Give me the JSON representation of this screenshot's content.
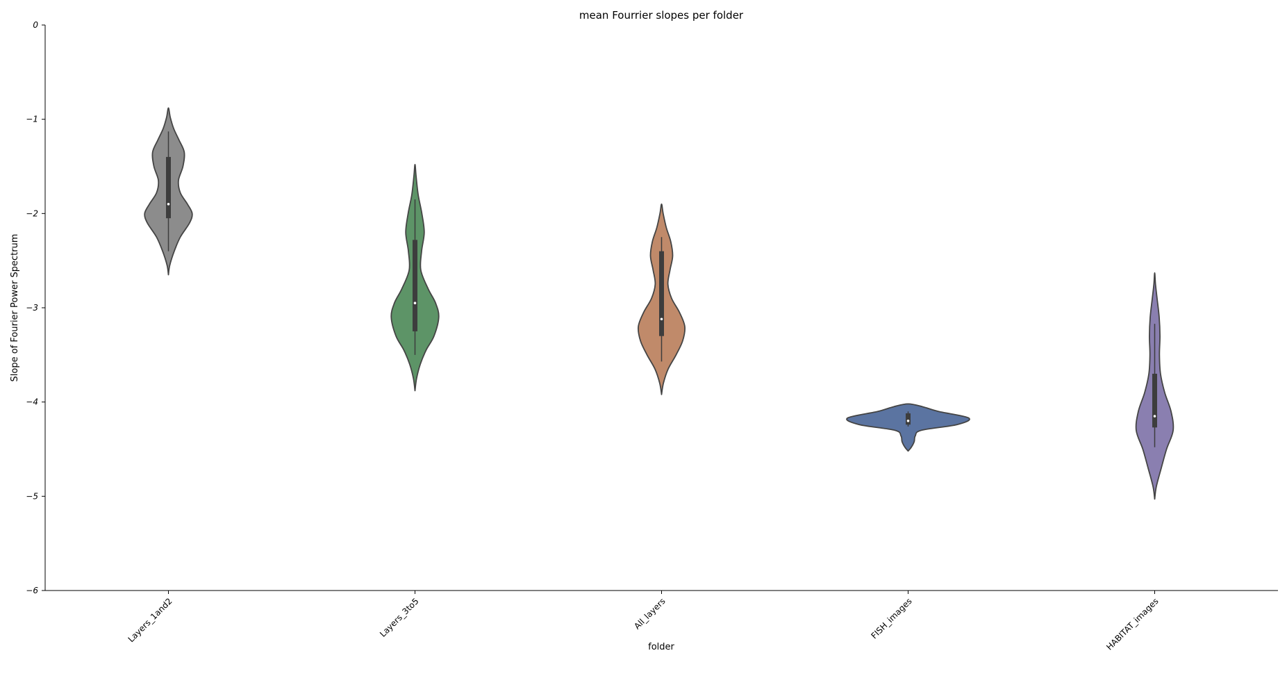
{
  "chart_data": {
    "type": "violin",
    "title": "mean Fourrier slopes per folder",
    "xlabel": "folder",
    "ylabel": "Slope of Fourier Power Spectrum",
    "ylim": [
      -6,
      0
    ],
    "yticks": [
      0,
      -1,
      -2,
      -3,
      -4,
      -5,
      -6
    ],
    "ytick_labels": [
      "0",
      "−1",
      "−2",
      "−3",
      "−4",
      "−5",
      "−6"
    ],
    "categories": [
      "Layers_1and2",
      "Layers_3to5",
      "All_layers",
      "FISH_images",
      "HABITAT_images"
    ],
    "grid": false,
    "legend": "none",
    "violins": [
      {
        "category": "Layers_1and2",
        "color": "#8c8c8c",
        "min": -2.4,
        "q1": -2.05,
        "median": -1.9,
        "q3": -1.4,
        "max": -1.13,
        "ymin": -2.65,
        "ymax": -0.88,
        "profile": [
          [
            -2.65,
            0.0
          ],
          [
            -2.55,
            0.05
          ],
          [
            -2.4,
            0.22
          ],
          [
            -2.25,
            0.45
          ],
          [
            -2.1,
            0.8
          ],
          [
            -2.0,
            0.9
          ],
          [
            -1.9,
            0.72
          ],
          [
            -1.78,
            0.45
          ],
          [
            -1.65,
            0.38
          ],
          [
            -1.5,
            0.55
          ],
          [
            -1.35,
            0.6
          ],
          [
            -1.22,
            0.4
          ],
          [
            -1.1,
            0.2
          ],
          [
            -0.98,
            0.07
          ],
          [
            -0.88,
            0.0
          ]
        ]
      },
      {
        "category": "Layers_3to5",
        "color": "#5d9467",
        "min": -3.5,
        "q1": -3.25,
        "median": -2.95,
        "q3": -2.28,
        "max": -1.85,
        "ymin": -3.88,
        "ymax": -1.48,
        "profile": [
          [
            -3.88,
            0.0
          ],
          [
            -3.75,
            0.06
          ],
          [
            -3.6,
            0.2
          ],
          [
            -3.45,
            0.42
          ],
          [
            -3.3,
            0.72
          ],
          [
            -3.1,
            0.9
          ],
          [
            -2.95,
            0.78
          ],
          [
            -2.8,
            0.5
          ],
          [
            -2.6,
            0.22
          ],
          [
            -2.4,
            0.25
          ],
          [
            -2.2,
            0.35
          ],
          [
            -2.0,
            0.26
          ],
          [
            -1.8,
            0.12
          ],
          [
            -1.6,
            0.04
          ],
          [
            -1.48,
            0.0
          ]
        ]
      },
      {
        "category": "All_layers",
        "color": "#c08a6a",
        "min": -3.57,
        "q1": -3.3,
        "median": -3.12,
        "q3": -2.4,
        "max": -2.25,
        "ymin": -3.92,
        "ymax": -1.9,
        "profile": [
          [
            -3.92,
            0.0
          ],
          [
            -3.8,
            0.07
          ],
          [
            -3.65,
            0.25
          ],
          [
            -3.5,
            0.55
          ],
          [
            -3.35,
            0.8
          ],
          [
            -3.2,
            0.88
          ],
          [
            -3.05,
            0.68
          ],
          [
            -2.9,
            0.38
          ],
          [
            -2.75,
            0.24
          ],
          [
            -2.6,
            0.32
          ],
          [
            -2.45,
            0.42
          ],
          [
            -2.3,
            0.35
          ],
          [
            -2.15,
            0.18
          ],
          [
            -2.0,
            0.06
          ],
          [
            -1.9,
            0.0
          ]
        ]
      },
      {
        "category": "FISH_images",
        "color": "#5b74a1",
        "min": -4.26,
        "q1": -4.24,
        "median": -4.2,
        "q3": -4.12,
        "max": -4.1,
        "ymin": -4.52,
        "ymax": -4.02,
        "profile": [
          [
            -4.52,
            0.0
          ],
          [
            -4.48,
            0.12
          ],
          [
            -4.42,
            0.23
          ],
          [
            -4.36,
            0.27
          ],
          [
            -4.3,
            0.5
          ],
          [
            -4.24,
            1.85
          ],
          [
            -4.17,
            2.3
          ],
          [
            -4.1,
            1.15
          ],
          [
            -4.05,
            0.55
          ],
          [
            -4.02,
            0.0
          ]
        ]
      },
      {
        "category": "HABITAT_images",
        "color": "#8a7fb0",
        "min": -4.48,
        "q1": -4.27,
        "median": -4.15,
        "q3": -3.7,
        "max": -3.17,
        "ymin": -5.03,
        "ymax": -2.63,
        "profile": [
          [
            -5.03,
            0.0
          ],
          [
            -4.9,
            0.06
          ],
          [
            -4.7,
            0.25
          ],
          [
            -4.5,
            0.45
          ],
          [
            -4.3,
            0.7
          ],
          [
            -4.1,
            0.62
          ],
          [
            -3.9,
            0.38
          ],
          [
            -3.7,
            0.22
          ],
          [
            -3.5,
            0.18
          ],
          [
            -3.3,
            0.2
          ],
          [
            -3.1,
            0.17
          ],
          [
            -2.9,
            0.09
          ],
          [
            -2.75,
            0.03
          ],
          [
            -2.63,
            0.0
          ]
        ]
      }
    ]
  }
}
